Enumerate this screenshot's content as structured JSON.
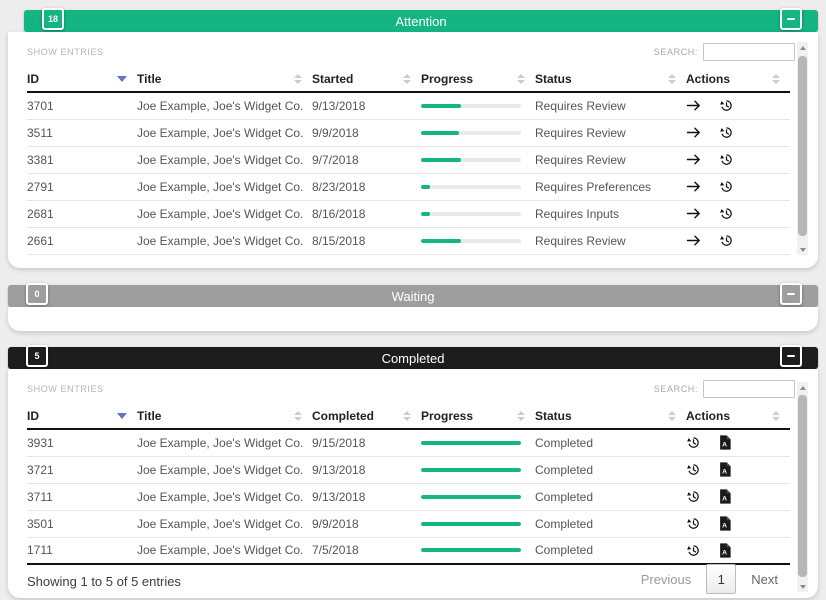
{
  "colors": {
    "accent_teal": "#14b583",
    "waiting_gray": "#9e9e9e",
    "completed_dark": "#1d1d1d",
    "sort_active": "#6373c8",
    "progress_fill": "#14b583"
  },
  "panels": {
    "attention": {
      "badge": "18",
      "title": "Attention",
      "collapse_label": "minus",
      "show_entries_label": "SHOW ENTRIES",
      "search_label": "SEARCH:",
      "search_value": "",
      "columns": [
        "ID",
        "Title",
        "Started",
        "Progress",
        "Status",
        "Actions"
      ],
      "sorted_column": "ID",
      "action_icons": [
        "go-arrow",
        "history"
      ],
      "rows": [
        {
          "id": "3701",
          "title": "Joe Example, Joe's Widget Co.",
          "date": "9/13/2018",
          "progress": 40,
          "status": "Requires Review"
        },
        {
          "id": "3511",
          "title": "Joe Example, Joe's Widget Co.",
          "date": "9/9/2018",
          "progress": 38,
          "status": "Requires Review"
        },
        {
          "id": "3381",
          "title": "Joe Example, Joe's Widget Co.",
          "date": "9/7/2018",
          "progress": 40,
          "status": "Requires Review"
        },
        {
          "id": "2791",
          "title": "Joe Example, Joe's Widget Co.",
          "date": "8/23/2018",
          "progress": 9,
          "status": "Requires Preferences"
        },
        {
          "id": "2681",
          "title": "Joe Example, Joe's Widget Co.",
          "date": "8/16/2018",
          "progress": 9,
          "status": "Requires Inputs"
        },
        {
          "id": "2661",
          "title": "Joe Example, Joe's Widget Co.",
          "date": "8/15/2018",
          "progress": 40,
          "status": "Requires Review"
        }
      ]
    },
    "waiting": {
      "badge": "0",
      "title": "Waiting",
      "collapse_label": "minus"
    },
    "completed": {
      "badge": "5",
      "title": "Completed",
      "collapse_label": "minus",
      "show_entries_label": "SHOW ENTRIES",
      "search_label": "SEARCH:",
      "search_value": "",
      "columns": [
        "ID",
        "Title",
        "Completed",
        "Progress",
        "Status",
        "Actions"
      ],
      "sorted_column": "ID",
      "action_icons": [
        "history",
        "pdf-file"
      ],
      "rows": [
        {
          "id": "3931",
          "title": "Joe Example, Joe's Widget Co.",
          "date": "9/15/2018",
          "progress": 100,
          "status": "Completed"
        },
        {
          "id": "3721",
          "title": "Joe Example, Joe's Widget Co.",
          "date": "9/13/2018",
          "progress": 100,
          "status": "Completed"
        },
        {
          "id": "3711",
          "title": "Joe Example, Joe's Widget Co.",
          "date": "9/13/2018",
          "progress": 100,
          "status": "Completed"
        },
        {
          "id": "3501",
          "title": "Joe Example, Joe's Widget Co.",
          "date": "9/9/2018",
          "progress": 100,
          "status": "Completed"
        },
        {
          "id": "1711",
          "title": "Joe Example, Joe's Widget Co.",
          "date": "7/5/2018",
          "progress": 100,
          "status": "Completed"
        }
      ],
      "footer": {
        "showing": "Showing 1 to 5 of 5 entries",
        "previous": "Previous",
        "page": "1",
        "next": "Next"
      }
    }
  }
}
